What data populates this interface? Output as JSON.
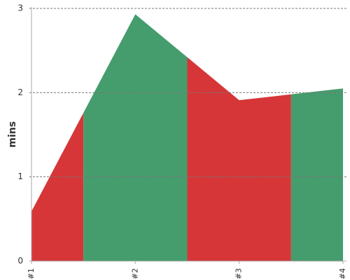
{
  "chart_data": {
    "type": "area",
    "y_label": "mins",
    "categories": [
      "#1",
      "#2",
      "#3",
      "#4"
    ],
    "values": [
      0.59,
      2.93,
      1.91,
      2.05
    ],
    "point_colors": [
      "#d63638",
      "#459c6c",
      "#d63638",
      "#459c6c"
    ],
    "ylim": [
      0,
      3
    ],
    "yticks": [
      0,
      1,
      2,
      3
    ],
    "grid": true
  }
}
